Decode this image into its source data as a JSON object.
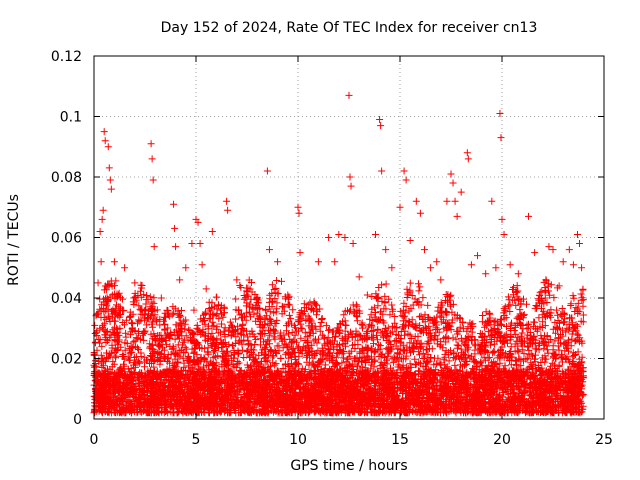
{
  "chart_data": {
    "type": "scatter",
    "title": "Day 152 of 2024, Rate Of TEC Index for receiver cn13",
    "xlabel": "GPS time / hours",
    "ylabel": "ROTI / TECUs",
    "xlim": [
      0,
      25
    ],
    "ylim": [
      0,
      0.12
    ],
    "x_ticks": [
      0,
      5,
      10,
      15,
      20,
      25
    ],
    "y_ticks": [
      0,
      0.02,
      0.04,
      0.06,
      0.08,
      0.1,
      0.12
    ],
    "x_tick_labels": [
      "0",
      "5",
      "10",
      "15",
      "20",
      "25"
    ],
    "y_tick_labels": [
      "0",
      "0.02",
      "0.04",
      "0.06",
      "0.08",
      "0.1",
      "0.12"
    ],
    "grid": true,
    "marker": "+",
    "series": [
      {
        "name": "ROTI",
        "color": "#ff0000",
        "points": [
          [
            0.1,
            0.004
          ],
          [
            0.2,
            0.045
          ],
          [
            0.3,
            0.062
          ],
          [
            0.35,
            0.052
          ],
          [
            0.4,
            0.066
          ],
          [
            0.45,
            0.069
          ],
          [
            0.5,
            0.095
          ],
          [
            0.55,
            0.092
          ],
          [
            0.6,
            0.038
          ],
          [
            0.7,
            0.09
          ],
          [
            0.75,
            0.083
          ],
          [
            0.8,
            0.079
          ],
          [
            0.85,
            0.076
          ],
          [
            0.9,
            0.041
          ],
          [
            1.0,
            0.052
          ],
          [
            1.2,
            0.041
          ],
          [
            1.5,
            0.05
          ],
          [
            1.8,
            0.034
          ],
          [
            2.0,
            0.045
          ],
          [
            2.3,
            0.036
          ],
          [
            2.8,
            0.091
          ],
          [
            2.85,
            0.086
          ],
          [
            2.9,
            0.079
          ],
          [
            2.95,
            0.057
          ],
          [
            3.3,
            0.04
          ],
          [
            3.6,
            0.035
          ],
          [
            3.9,
            0.071
          ],
          [
            3.95,
            0.063
          ],
          [
            4.0,
            0.057
          ],
          [
            4.2,
            0.046
          ],
          [
            4.5,
            0.05
          ],
          [
            4.8,
            0.058
          ],
          [
            4.9,
            0.036
          ],
          [
            5.0,
            0.066
          ],
          [
            5.1,
            0.065
          ],
          [
            5.2,
            0.058
          ],
          [
            5.3,
            0.051
          ],
          [
            5.5,
            0.043
          ],
          [
            5.8,
            0.062
          ],
          [
            6.2,
            0.036
          ],
          [
            6.5,
            0.072
          ],
          [
            6.55,
            0.069
          ],
          [
            7.0,
            0.046
          ],
          [
            7.5,
            0.041
          ],
          [
            8.0,
            0.035
          ],
          [
            8.5,
            0.082
          ],
          [
            8.6,
            0.056
          ],
          [
            9.0,
            0.052
          ],
          [
            9.5,
            0.041
          ],
          [
            10.0,
            0.07
          ],
          [
            10.05,
            0.068
          ],
          [
            10.1,
            0.055
          ],
          [
            10.5,
            0.034
          ],
          [
            11.0,
            0.052
          ],
          [
            11.5,
            0.06
          ],
          [
            11.8,
            0.052
          ],
          [
            12.0,
            0.061
          ],
          [
            12.3,
            0.06
          ],
          [
            12.5,
            0.107
          ],
          [
            12.55,
            0.08
          ],
          [
            12.6,
            0.077
          ],
          [
            12.7,
            0.058
          ],
          [
            13.0,
            0.047
          ],
          [
            13.4,
            0.041
          ],
          [
            13.8,
            0.061
          ],
          [
            14.0,
            0.099
          ],
          [
            14.05,
            0.097
          ],
          [
            14.1,
            0.082
          ],
          [
            14.3,
            0.056
          ],
          [
            14.6,
            0.05
          ],
          [
            15.0,
            0.07
          ],
          [
            15.2,
            0.082
          ],
          [
            15.3,
            0.079
          ],
          [
            15.5,
            0.059
          ],
          [
            15.8,
            0.072
          ],
          [
            16.0,
            0.068
          ],
          [
            16.2,
            0.056
          ],
          [
            16.5,
            0.05
          ],
          [
            16.8,
            0.052
          ],
          [
            17.0,
            0.046
          ],
          [
            17.3,
            0.072
          ],
          [
            17.5,
            0.081
          ],
          [
            17.6,
            0.078
          ],
          [
            17.7,
            0.072
          ],
          [
            17.8,
            0.067
          ],
          [
            18.0,
            0.075
          ],
          [
            18.3,
            0.088
          ],
          [
            18.35,
            0.086
          ],
          [
            18.5,
            0.051
          ],
          [
            18.8,
            0.054
          ],
          [
            19.2,
            0.048
          ],
          [
            19.5,
            0.072
          ],
          [
            19.7,
            0.05
          ],
          [
            19.9,
            0.101
          ],
          [
            19.95,
            0.093
          ],
          [
            20.0,
            0.066
          ],
          [
            20.1,
            0.061
          ],
          [
            20.4,
            0.051
          ],
          [
            20.8,
            0.048
          ],
          [
            21.3,
            0.067
          ],
          [
            21.6,
            0.055
          ],
          [
            22.0,
            0.039
          ],
          [
            22.3,
            0.057
          ],
          [
            22.5,
            0.056
          ],
          [
            22.8,
            0.044
          ],
          [
            23.0,
            0.052
          ],
          [
            23.3,
            0.056
          ],
          [
            23.5,
            0.051
          ],
          [
            23.7,
            0.061
          ],
          [
            23.8,
            0.058
          ],
          [
            23.9,
            0.05
          ]
        ],
        "dense_band": {
          "x_range": [
            0,
            24
          ],
          "typical_min": 0.002,
          "typical_max": 0.035,
          "note": "thousands of overlapping + markers forming a solid band"
        }
      }
    ]
  }
}
